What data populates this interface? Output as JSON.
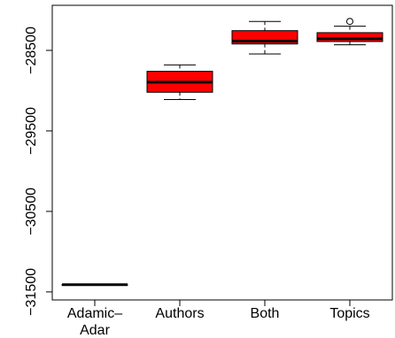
{
  "chart_data": {
    "type": "box",
    "categories": [
      [
        "Adamic–",
        "Adar"
      ],
      [
        "Authors"
      ],
      [
        "Both"
      ],
      [
        "Topics"
      ]
    ],
    "y_ticks": [
      -31500,
      -30500,
      -29500,
      -28500
    ],
    "y_tick_labels": [
      "−31500",
      "−30500",
      "−29500",
      "−28500"
    ],
    "ylim": [
      -31600,
      -27940
    ],
    "box_color": "#ff0000",
    "boxes": [
      {
        "category": "Adamic–Adar",
        "min": -31410,
        "q1": -31410,
        "median": -31410,
        "q3": -31410,
        "max": -31410,
        "outliers": []
      },
      {
        "category": "Authors",
        "min": -29110,
        "q1": -29020,
        "median": -28895,
        "q3": -28760,
        "max": -28680,
        "outliers": []
      },
      {
        "category": "Both",
        "min": -28545,
        "q1": -28420,
        "median": -28385,
        "q3": -28255,
        "max": -28140,
        "outliers": []
      },
      {
        "category": "Topics",
        "min": -28430,
        "q1": -28390,
        "median": -28355,
        "q3": -28280,
        "max": -28200,
        "outliers": [
          -28140
        ]
      }
    ]
  }
}
